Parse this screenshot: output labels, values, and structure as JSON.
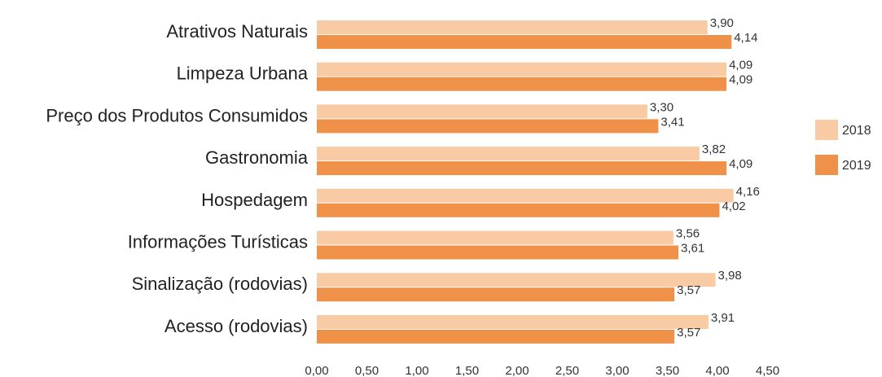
{
  "chart_data": {
    "type": "bar",
    "orientation": "horizontal",
    "categories": [
      "Atrativos Naturais",
      "Limpeza Urbana",
      "Preço dos Produtos Consumidos",
      "Gastronomia",
      "Hospedagem",
      "Informações Turísticas",
      "Sinalização (rodovias)",
      "Acesso (rodovias)"
    ],
    "series": [
      {
        "name": "2018",
        "color": "#f9cba4",
        "values": [
          3.9,
          4.09,
          3.3,
          3.82,
          4.16,
          3.56,
          3.98,
          3.91
        ],
        "labels": [
          "3,90",
          "4,09",
          "3,30",
          "3,82",
          "4,16",
          "3,56",
          "3,98",
          "3,91"
        ]
      },
      {
        "name": "2019",
        "color": "#f0914a",
        "values": [
          4.14,
          4.09,
          3.41,
          4.09,
          4.02,
          3.61,
          3.57,
          3.57
        ],
        "labels": [
          "4,14",
          "4,09",
          "3,41",
          "4,09",
          "4,02",
          "3,61",
          "3,57",
          "3,57"
        ]
      }
    ],
    "xlim": [
      0,
      4.5
    ],
    "xticks": [
      0,
      0.5,
      1.0,
      1.5,
      2.0,
      2.5,
      3.0,
      3.5,
      4.0,
      4.5
    ],
    "xtick_labels": [
      "0,00",
      "0,50",
      "1,00",
      "1,50",
      "2,00",
      "2,50",
      "3,00",
      "3,50",
      "4,00",
      "4,50"
    ],
    "grid": false,
    "legend_position": "right"
  }
}
